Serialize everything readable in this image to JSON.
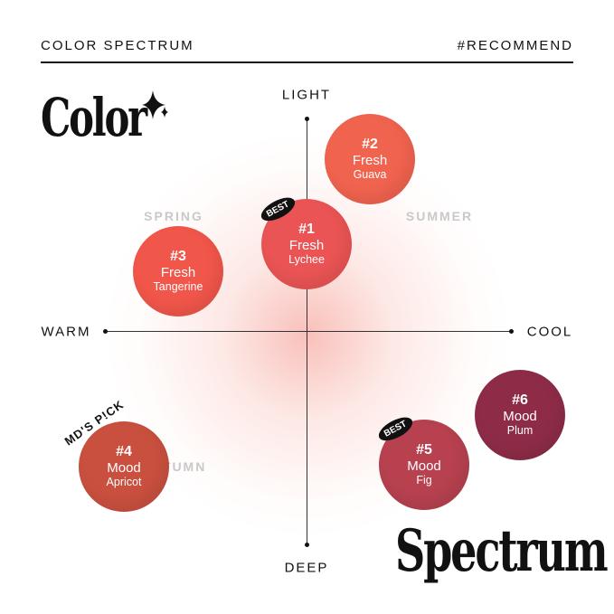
{
  "header": {
    "left": "COLOR SPECTRUM",
    "right": "#RECOMMEND"
  },
  "title_top": "Color",
  "title_bottom": "Spectrum",
  "axes": {
    "top": "LIGHT",
    "bottom": "DEEP",
    "left": "WARM",
    "right": "COOL"
  },
  "seasons": {
    "spring": "SPRING",
    "summer": "SUMMER",
    "autumn": "AUTUMN"
  },
  "swatches": [
    {
      "number": "#1",
      "line": "Fresh",
      "shade": "Lychee",
      "color": "#ea5454",
      "badge": "BEST"
    },
    {
      "number": "#2",
      "line": "Fresh",
      "shade": "Guava",
      "color": "#f0634f"
    },
    {
      "number": "#3",
      "line": "Fresh",
      "shade": "Tangerine",
      "color": "#f1564a"
    },
    {
      "number": "#4",
      "line": "Mood",
      "shade": "Apricot",
      "color": "#c9503f",
      "badge": "MD'S P!CK"
    },
    {
      "number": "#5",
      "line": "Mood",
      "shade": "Fig",
      "color": "#b7414f",
      "badge": "BEST"
    },
    {
      "number": "#6",
      "line": "Mood",
      "shade": "Plum",
      "color": "#8e2c48"
    }
  ],
  "sparkle_icon": "four-point-star-icon"
}
